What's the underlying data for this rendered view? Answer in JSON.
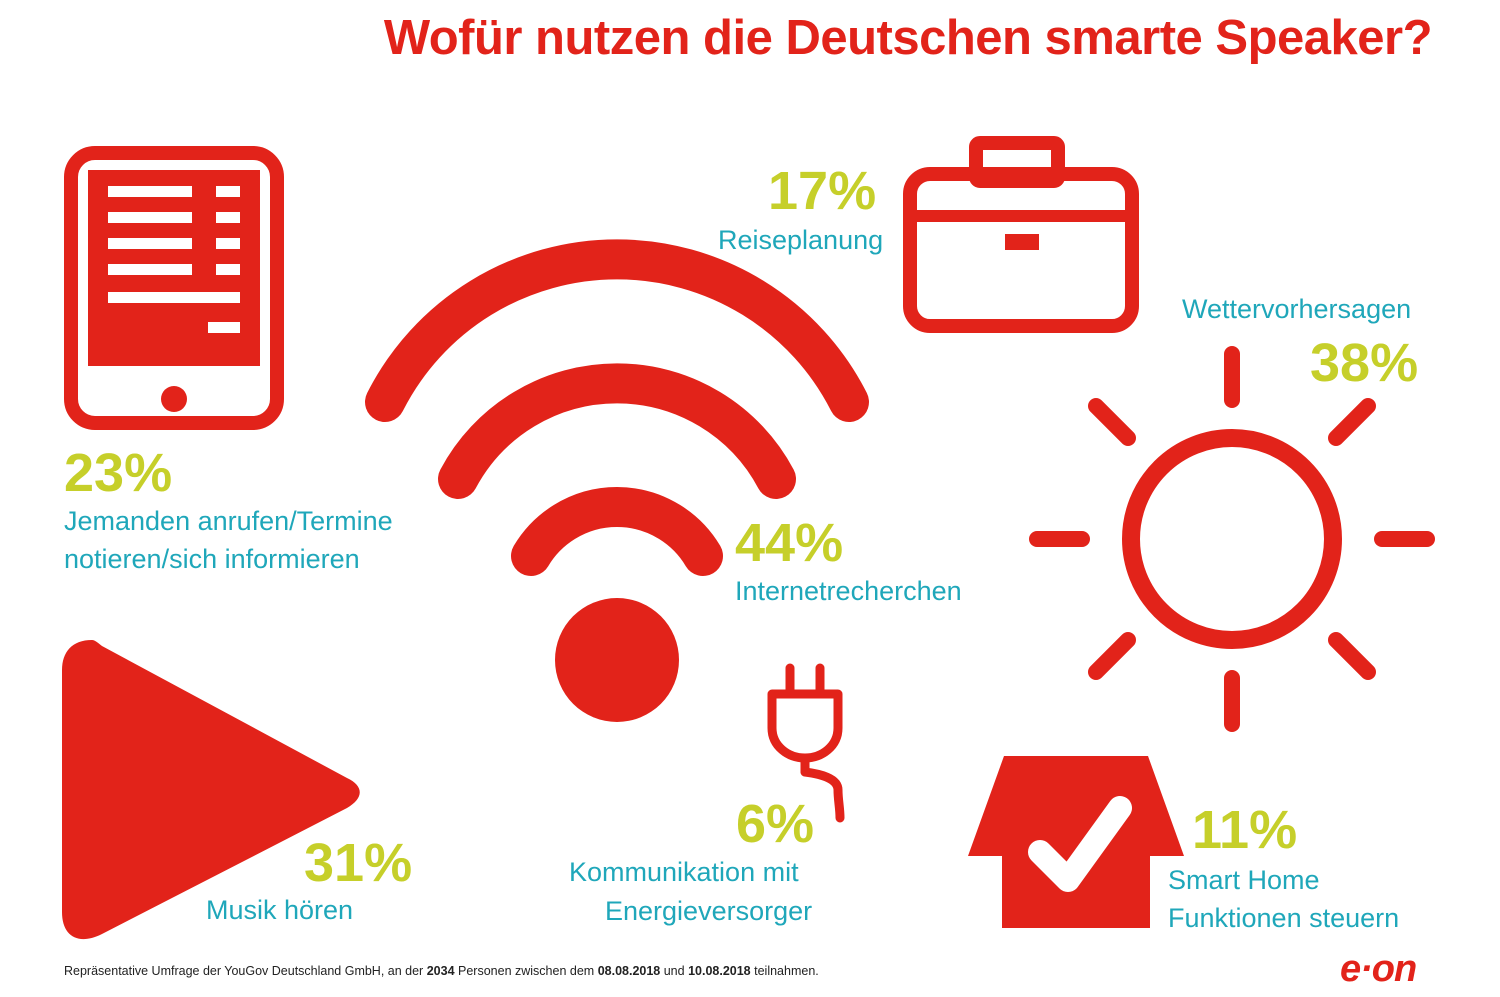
{
  "title": "Wofür nutzen die Deutschen smarte Speaker?",
  "stats": {
    "calls": {
      "percent": "23%",
      "line1": "Jemanden anrufen/Termine",
      "line2": "notieren/sich informieren",
      "icon": "tablet-icon"
    },
    "research": {
      "percent": "44%",
      "label": "Internetrecherchen",
      "icon": "wifi-icon"
    },
    "travel": {
      "percent": "17%",
      "label": "Reiseplanung",
      "icon": "briefcase-icon"
    },
    "weather": {
      "percent": "38%",
      "label": "Wettervorhersagen",
      "icon": "sun-icon"
    },
    "music": {
      "percent": "31%",
      "label": "Musik hören",
      "icon": "play-icon"
    },
    "energy": {
      "percent": "6%",
      "line1": "Kommunikation mit",
      "line2": "Energieversorger",
      "icon": "plug-icon"
    },
    "smarthome": {
      "percent": "11%",
      "line1": "Smart Home",
      "line2": "Funktionen steuern",
      "icon": "house-check-icon"
    }
  },
  "footer": {
    "pre": "Repräsentative Umfrage der YouGov Deutschland GmbH, an der",
    "count": "2034",
    "mid1": "Personen zwischen dem",
    "date1": "08.08.2018",
    "mid2": "und",
    "date2": "10.08.2018",
    "post": "teilnahmen."
  },
  "brand": {
    "logo": "e·on"
  },
  "colors": {
    "red": "#e2231a",
    "yellow": "#c6cf2a",
    "teal": "#1fa7ba"
  }
}
